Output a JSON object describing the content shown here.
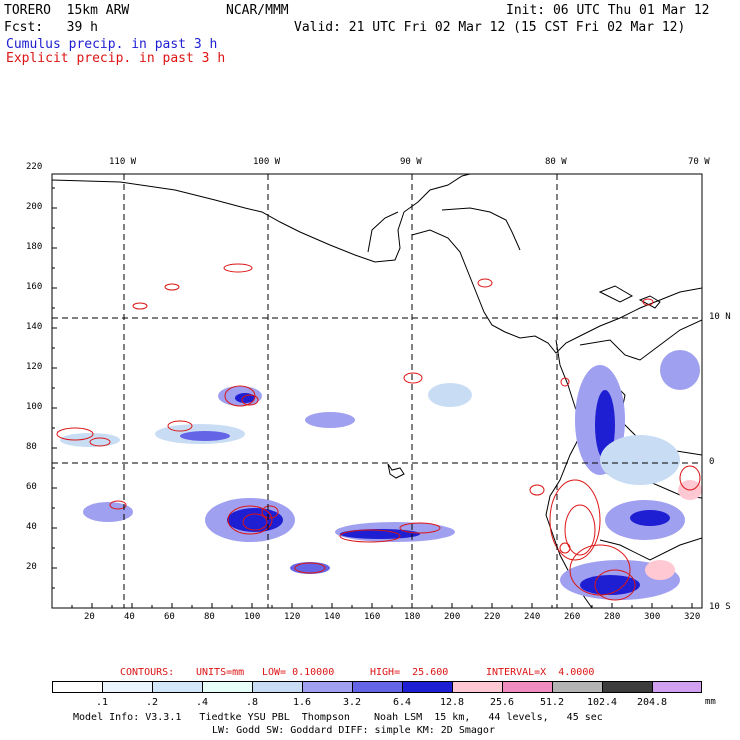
{
  "header": {
    "model": "TORERO  15km ARW",
    "org": "NCAR/MMM",
    "init": "Init: 06 UTC Thu 01 Mar 12",
    "fcst": "Fcst:   39 h",
    "valid": "Valid: 21 UTC Fri 02 Mar 12 (15 CST Fri 02 Mar 12)",
    "cumulus": "Cumulus precip. in past 3 h",
    "explicit": "Explicit precip. in past 3 h",
    "cumulus_color": "#1e1ed2",
    "explicit_color": "#dc1414"
  },
  "map": {
    "lon_labels": [
      "110 W",
      "100 W",
      "90 W",
      "80 W",
      "70 W"
    ],
    "lat_labels": [
      "10 N",
      "0",
      "10 S"
    ],
    "x_ticks": [
      "20",
      "40",
      "60",
      "80",
      "100",
      "120",
      "140",
      "160",
      "180",
      "200",
      "220",
      "240",
      "260",
      "280",
      "300",
      "320"
    ],
    "y_ticks": [
      "20",
      "40",
      "60",
      "80",
      "100",
      "120",
      "140",
      "160",
      "180",
      "200",
      "220"
    ]
  },
  "contours": {
    "label": "CONTOURS:",
    "units": "UNITS=mm",
    "low": "LOW= 0.10000",
    "high": "HIGH=  25.600",
    "interval": "INTERVAL=X  4.0000"
  },
  "legend": {
    "values": [
      ".1",
      ".2",
      ".4",
      ".8",
      "1.6",
      "3.2",
      "6.4",
      "12.8",
      "25.6",
      "51.2",
      "102.4",
      "204.8"
    ],
    "unit": "mm",
    "colors": [
      "#ffffff",
      "#ebf5ff",
      "#d2e8fa",
      "#e6fff8",
      "#c8dcf4",
      "#a0a0f0",
      "#6464e6",
      "#1e1ed2",
      "#ffc8d2",
      "#f08cbe",
      "#b4b4b4",
      "#3c3c3c",
      "#d2a0f0"
    ]
  },
  "footer": {
    "line1": "Model Info: V3.3.1   Tiedtke YSU PBL  Thompson    Noah LSM  15 km,   44 levels,   45 sec",
    "line2": "LW: Godd SW: Goddard DIFF: simple KM: 2D Smagor"
  }
}
